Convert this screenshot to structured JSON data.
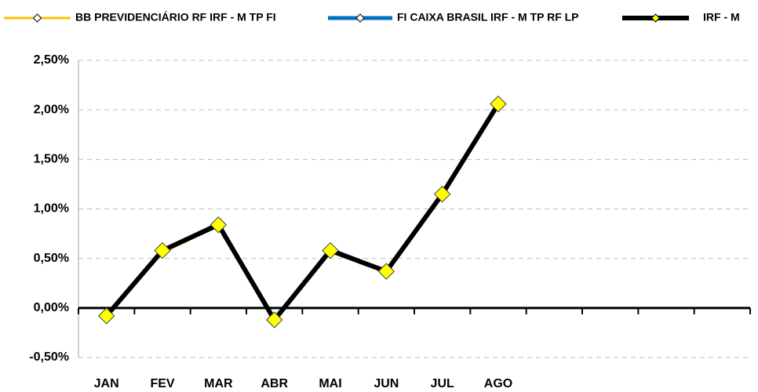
{
  "chart_data": {
    "type": "line",
    "categories": [
      "JAN",
      "FEV",
      "MAR",
      "ABR",
      "MAI",
      "JUN",
      "JUL",
      "AGO",
      null,
      null,
      null,
      null
    ],
    "series": [
      {
        "name": "BB PREVIDENCIÁRIO RF IRF - M TP FI",
        "color": "#FFC000",
        "values": [
          -0.09,
          0.56,
          0.83,
          -0.1,
          0.58,
          0.36,
          1.14,
          2.05,
          null,
          null,
          null,
          null
        ]
      },
      {
        "name": "FI CAIXA BRASIL IRF - M TP RF LP",
        "color": "#0070C0",
        "values": [
          -0.08,
          0.58,
          0.85,
          -0.12,
          0.59,
          0.37,
          1.15,
          2.06,
          null,
          null,
          null,
          null
        ]
      },
      {
        "name": "IRF - M",
        "color": "#000000",
        "marker_color": "#FFFF00",
        "values": [
          -0.08,
          0.58,
          0.84,
          -0.12,
          0.58,
          0.37,
          1.15,
          2.06,
          null,
          null,
          null,
          null
        ]
      }
    ],
    "ylim": [
      -0.5,
      2.5
    ],
    "yticks": [
      {
        "value": -0.5,
        "label": "-0,50%"
      },
      {
        "value": 0,
        "label": "0,00%"
      },
      {
        "value": 0.5,
        "label": "0,50%"
      },
      {
        "value": 1,
        "label": "1,00%"
      },
      {
        "value": 1.5,
        "label": "1,50%"
      },
      {
        "value": 2,
        "label": "2,00%"
      },
      {
        "value": 2.5,
        "label": "2,50%"
      }
    ],
    "grid": true
  }
}
